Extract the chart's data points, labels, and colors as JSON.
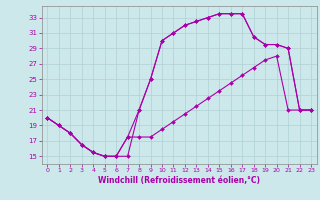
{
  "xlabel": "Windchill (Refroidissement éolien,°C)",
  "background_color": "#cce8ea",
  "grid_color": "#b0d0d4",
  "line_color": "#aa00aa",
  "x_ticks": [
    0,
    1,
    2,
    3,
    4,
    5,
    6,
    7,
    8,
    9,
    10,
    11,
    12,
    13,
    14,
    15,
    16,
    17,
    18,
    19,
    20,
    21,
    22,
    23
  ],
  "y_ticks": [
    15,
    17,
    19,
    21,
    23,
    25,
    27,
    29,
    31,
    33
  ],
  "xlim": [
    -0.5,
    23.5
  ],
  "ylim": [
    14.0,
    34.5
  ],
  "curve1_x": [
    0,
    1,
    2,
    3,
    4,
    5,
    6,
    7,
    8,
    9,
    10,
    11,
    12,
    13,
    14,
    15,
    16,
    17,
    18,
    19,
    20,
    21,
    22,
    23
  ],
  "curve1_y": [
    20.0,
    19.0,
    18.0,
    16.5,
    15.5,
    15.0,
    15.0,
    15.0,
    21.0,
    25.0,
    30.0,
    31.0,
    32.0,
    32.5,
    33.0,
    33.5,
    33.5,
    33.5,
    30.5,
    29.5,
    29.5,
    29.0,
    21.0,
    21.0
  ],
  "curve2_x": [
    0,
    1,
    2,
    3,
    4,
    5,
    6,
    7,
    8,
    9,
    10,
    11,
    12,
    13,
    14,
    15,
    16,
    17,
    18,
    19,
    20,
    21,
    22,
    23
  ],
  "curve2_y": [
    20.0,
    19.0,
    18.0,
    16.5,
    15.5,
    15.0,
    15.0,
    17.5,
    21.0,
    25.0,
    30.0,
    31.0,
    32.0,
    32.5,
    33.0,
    33.5,
    33.5,
    33.5,
    30.5,
    29.5,
    29.5,
    29.0,
    21.0,
    21.0
  ],
  "curve3_x": [
    0,
    1,
    2,
    3,
    4,
    5,
    6,
    7,
    8,
    9,
    10,
    11,
    12,
    13,
    14,
    15,
    16,
    17,
    18,
    19,
    20,
    21,
    22,
    23
  ],
  "curve3_y": [
    20.0,
    19.0,
    18.0,
    16.5,
    15.5,
    15.0,
    15.0,
    17.5,
    17.5,
    17.5,
    18.5,
    19.5,
    20.5,
    21.5,
    22.5,
    23.5,
    24.5,
    25.5,
    26.5,
    27.5,
    28.0,
    21.0,
    21.0,
    21.0
  ]
}
